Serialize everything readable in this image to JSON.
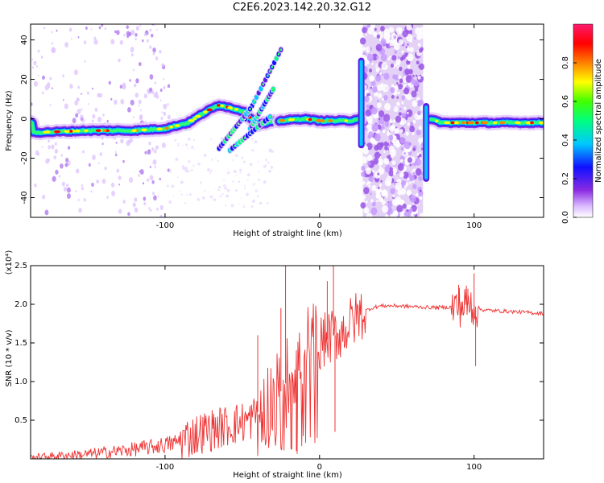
{
  "title": "C2E6.2023.142.20.32.G12",
  "colors": {
    "snr_line": "#ee3333",
    "band": "#e4d2f6",
    "band_dots": "#9a55e6"
  },
  "chart_data": [
    {
      "type": "heatmap",
      "title": "",
      "xlabel": "Height of straight line (km)",
      "ylabel": "Frequency (Hz)",
      "xlim": [
        -187,
        145
      ],
      "ylim": [
        -50,
        48
      ],
      "xticks": [
        -100,
        0,
        100
      ],
      "yticks": [
        -40,
        -20,
        0,
        20,
        40
      ],
      "colorbar": {
        "label": "Normalized spectral amplitude",
        "range": [
          0,
          1
        ],
        "ticks": [
          "0.0",
          "0.2",
          "0.4",
          "0.6",
          "0.8"
        ],
        "colormap": "rainbow (white/violet → blue → cyan → green → yellow → red → magenta)"
      },
      "features": {
        "main_trace_hz": [
          {
            "x": -185,
            "f": -7
          },
          {
            "x": -150,
            "f": -6
          },
          {
            "x": -120,
            "f": -6
          },
          {
            "x": -100,
            "f": -5
          },
          {
            "x": -85,
            "f": -2
          },
          {
            "x": -75,
            "f": 3
          },
          {
            "x": -65,
            "f": 7
          },
          {
            "x": -50,
            "f": 4
          },
          {
            "x": -40,
            "f": -3
          },
          {
            "x": -26,
            "f": -1
          },
          {
            "x": -10,
            "f": 0
          },
          {
            "x": 0,
            "f": -1
          },
          {
            "x": 20,
            "f": -1
          },
          {
            "x": 25,
            "f": 0
          },
          {
            "x": 70,
            "f": 0
          },
          {
            "x": 80,
            "f": -2
          },
          {
            "x": 100,
            "f": -2
          },
          {
            "x": 143,
            "f": -2
          }
        ],
        "upper_branches": [
          {
            "from": [
              -48,
              0
            ],
            "to": [
              -25,
              35
            ]
          },
          {
            "from": [
              -45,
              -5
            ],
            "to": [
              -30,
              15
            ]
          }
        ],
        "lower_branches": [
          {
            "from": [
              -65,
              -15
            ],
            "to": [
              -45,
              5
            ]
          },
          {
            "from": [
              -58,
              -16
            ],
            "to": [
              -32,
              1
            ]
          }
        ],
        "noise_band_x": [
          28,
          67
        ],
        "vertical_streaks": [
          {
            "x": 27,
            "f": [
              -15,
              31
            ]
          },
          {
            "x": 69,
            "f": [
              -32,
              8
            ]
          }
        ]
      }
    },
    {
      "type": "line",
      "title": "",
      "xlabel": "Height of straight line (km)",
      "ylabel": "SNR (10 * v/v)",
      "y_multiplier": "(x10⁴)",
      "xlim": [
        -187,
        145
      ],
      "ylim": [
        0,
        2.5
      ],
      "xticks": [
        -100,
        0,
        100
      ],
      "yticks": [
        0.5,
        1.0,
        1.5,
        2.0,
        2.5
      ],
      "series": [
        {
          "x": [
            -187,
            -170,
            -150,
            -130,
            -110,
            -95,
            -85,
            -75,
            -65,
            -55,
            -45,
            -38,
            -32,
            -28,
            -24,
            -20,
            -16,
            -12,
            -8,
            -4,
            0,
            5,
            10,
            15,
            20,
            25,
            30,
            35,
            40,
            50,
            60,
            70,
            80,
            90,
            95,
            100,
            105,
            110,
            120,
            130,
            145
          ],
          "y": [
            0.02,
            0.04,
            0.06,
            0.1,
            0.15,
            0.2,
            0.28,
            0.35,
            0.4,
            0.45,
            0.5,
            0.65,
            0.75,
            0.8,
            0.9,
            1.05,
            1.2,
            1.3,
            1.4,
            1.45,
            1.5,
            1.55,
            1.6,
            1.65,
            1.75,
            1.85,
            1.92,
            1.96,
            1.98,
            1.98,
            1.97,
            1.96,
            1.96,
            1.97,
            2.0,
            1.98,
            1.93,
            1.92,
            1.91,
            1.9,
            1.88
          ]
        }
      ],
      "spikes": [
        {
          "x": -40,
          "y": 1.6
        },
        {
          "x": -25,
          "y": 1.95
        },
        {
          "x": -22,
          "y": 2.5
        },
        {
          "x": -18,
          "y": 0.15
        },
        {
          "x": -15,
          "y": 0.1
        },
        {
          "x": 5,
          "y": 2.3
        },
        {
          "x": 9,
          "y": 2.5
        },
        {
          "x": 10,
          "y": 0.35
        },
        {
          "x": 90,
          "y": 2.25
        },
        {
          "x": 96,
          "y": 2.2
        },
        {
          "x": 100,
          "y": 2.4
        },
        {
          "x": 101,
          "y": 1.2
        }
      ]
    }
  ]
}
